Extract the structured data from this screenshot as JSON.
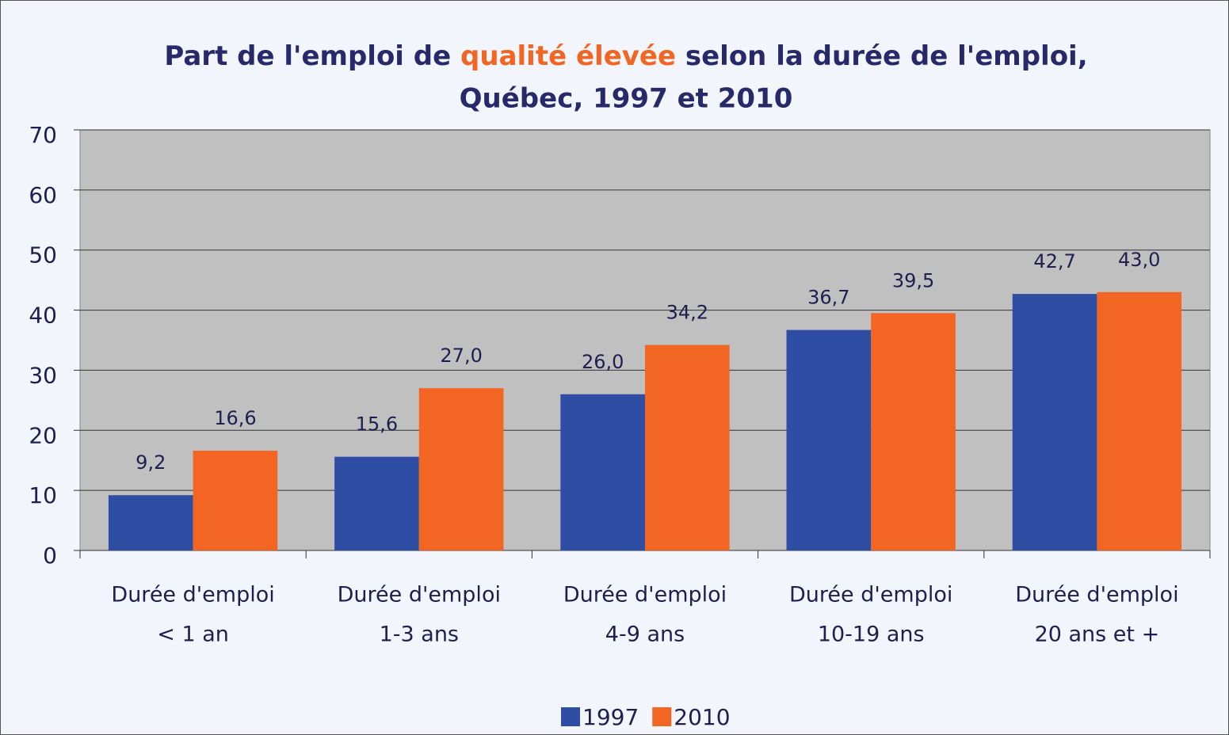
{
  "chart_data": {
    "type": "bar",
    "title_parts": [
      "Part de l'emploi de ",
      "qualité élevée",
      " selon la durée de l'emploi,",
      "Québec, 1997 et 2010"
    ],
    "categories": [
      [
        "Durée d'emploi",
        "< 1 an"
      ],
      [
        "Durée d'emploi",
        "1-3 ans"
      ],
      [
        "Durée d'emploi",
        "4-9 ans"
      ],
      [
        "Durée d'emploi",
        "10-19 ans"
      ],
      [
        "Durée d'emploi",
        "20 ans et +"
      ]
    ],
    "series": [
      {
        "name": "1997",
        "color": "#2e4ea3",
        "values": [
          9.2,
          15.6,
          26.0,
          36.7,
          42.7
        ],
        "value_labels": [
          "9,2",
          "15,6",
          "26,0",
          "36,7",
          "42,7"
        ]
      },
      {
        "name": "2010",
        "color": "#f26522",
        "values": [
          16.6,
          27.0,
          34.2,
          39.5,
          43.0
        ],
        "value_labels": [
          "16,6",
          "27,0",
          "34,2",
          "39,5",
          "43,0"
        ]
      }
    ],
    "ylim": [
      0,
      70
    ],
    "yticks": [
      0,
      10,
      20,
      30,
      40,
      50,
      60,
      70
    ],
    "grid": true,
    "legend": "bottom"
  }
}
